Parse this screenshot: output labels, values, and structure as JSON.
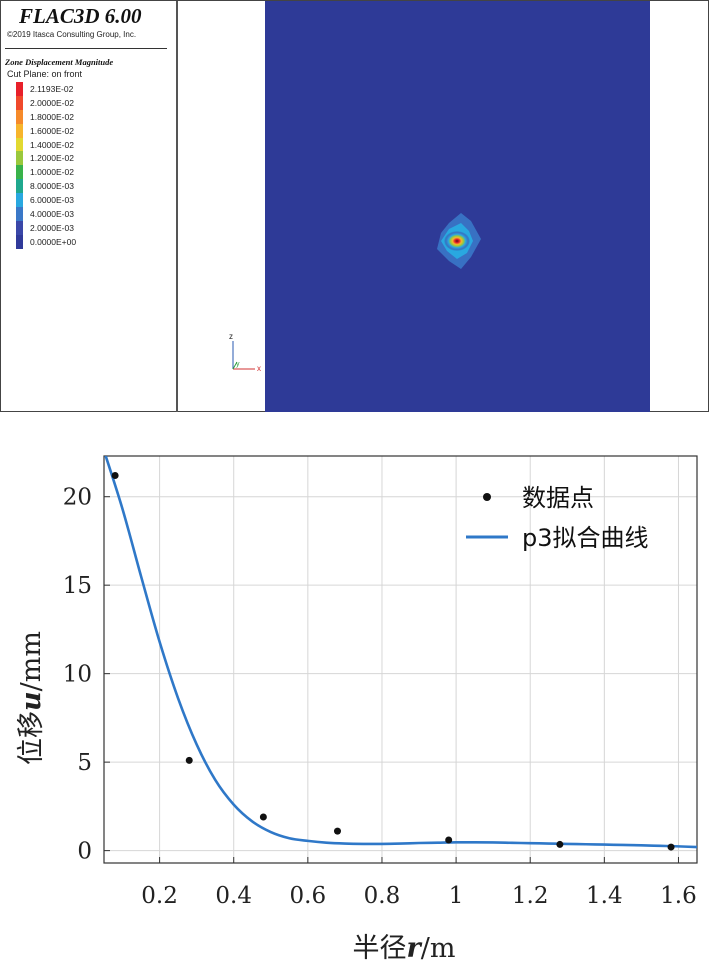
{
  "flac": {
    "title": "FLAC3D 6.00",
    "copyright": "©2019 Itasca Consulting Group, Inc.",
    "contour_title": "Zone Displacement Magnitude",
    "cut_plane": "Cut Plane: on front",
    "legend": [
      {
        "label": "2.1193E-02",
        "color": "#e8202a"
      },
      {
        "label": "2.0000E-02",
        "color": "#f0492b"
      },
      {
        "label": "1.8000E-02",
        "color": "#f68a2a"
      },
      {
        "label": "1.6000E-02",
        "color": "#f7b52c"
      },
      {
        "label": "1.4000E-02",
        "color": "#e2d931"
      },
      {
        "label": "1.2000E-02",
        "color": "#9ac83c"
      },
      {
        "label": "1.0000E-02",
        "color": "#39b24a"
      },
      {
        "label": "8.0000E-03",
        "color": "#1fa88e"
      },
      {
        "label": "6.0000E-03",
        "color": "#29a8e0"
      },
      {
        "label": "4.0000E-03",
        "color": "#3a78c8"
      },
      {
        "label": "2.0000E-03",
        "color": "#3a47a8"
      },
      {
        "label": "0.0000E+00",
        "color": "#303a9a"
      }
    ],
    "model_background_color": "#2e3a97",
    "axes": {
      "z": "z",
      "y": "y",
      "x": "x"
    }
  },
  "chart_data": {
    "type": "scatter",
    "xlabel_prefix": "半径",
    "xlabel_var": "r",
    "xlabel_unit": "/m",
    "ylabel_prefix": "位移",
    "ylabel_var": "u",
    "ylabel_unit": "/mm",
    "xlim": [
      0.05,
      1.65
    ],
    "ylim": [
      -0.7,
      22.3
    ],
    "xticks": [
      0.2,
      0.4,
      0.6,
      0.8,
      1,
      1.2,
      1.4,
      1.6
    ],
    "xtick_labels": [
      "0.2",
      "0.4",
      "0.6",
      "0.8",
      "1",
      "1.2",
      "1.4",
      "1.6"
    ],
    "yticks": [
      0,
      5,
      10,
      15,
      20
    ],
    "ytick_labels": [
      "0",
      "5",
      "10",
      "15",
      "20"
    ],
    "grid": true,
    "legend_position": "top-right",
    "series": [
      {
        "name": "数据点",
        "kind": "scatter",
        "color": "#111111",
        "x": [
          0.08,
          0.28,
          0.48,
          0.68,
          0.98,
          1.28,
          1.58
        ],
        "y": [
          21.2,
          5.1,
          1.9,
          1.1,
          0.6,
          0.35,
          0.2
        ]
      },
      {
        "name": "p3拟合曲线",
        "kind": "line",
        "color": "#2f78c8",
        "x": [
          0.05,
          0.1,
          0.15,
          0.2,
          0.25,
          0.3,
          0.35,
          0.4,
          0.45,
          0.5,
          0.55,
          0.6,
          0.65,
          0.7,
          0.75,
          0.8,
          0.85,
          0.9,
          0.95,
          1.0,
          1.05,
          1.1,
          1.15,
          1.2,
          1.25,
          1.3,
          1.35,
          1.4,
          1.45,
          1.5,
          1.55,
          1.6,
          1.65
        ],
        "y": [
          22.6,
          19.3,
          15.5,
          11.8,
          8.6,
          6.0,
          4.0,
          2.6,
          1.65,
          1.05,
          0.7,
          0.55,
          0.45,
          0.4,
          0.38,
          0.38,
          0.4,
          0.43,
          0.45,
          0.47,
          0.47,
          0.46,
          0.44,
          0.42,
          0.4,
          0.38,
          0.36,
          0.34,
          0.32,
          0.3,
          0.27,
          0.24,
          0.2
        ]
      }
    ]
  }
}
